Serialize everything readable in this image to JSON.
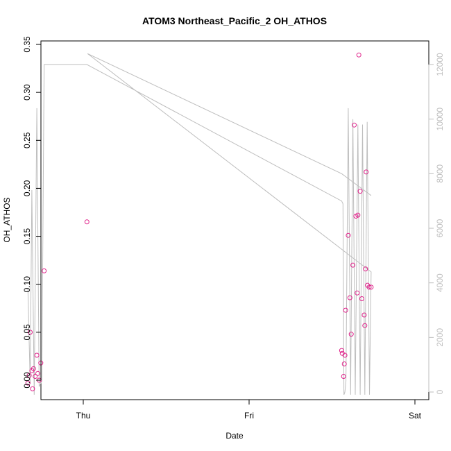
{
  "chart_data": {
    "type": "scatter",
    "title": "ATOM3 Northeast_Pacific_2 OH_ATHOS",
    "xlabel": "Date",
    "ylabel": "OH_ATHOS",
    "y2label": "",
    "x_ticks": [
      "Thu",
      "Fri",
      "Sat"
    ],
    "ylim": [
      -0.015,
      0.35
    ],
    "y_ticks": [
      "0.00",
      "0.05",
      "0.10",
      "0.15",
      "0.20",
      "0.25",
      "0.30",
      "0.35"
    ],
    "y2lim": [
      -200,
      12800
    ],
    "y2_ticks": [
      "0",
      "2000",
      "4000",
      "6000",
      "8000",
      "10000",
      "12000"
    ],
    "xlim": [
      -0.21,
      1.03
    ],
    "grid": false,
    "colors": {
      "points": "#e0218a",
      "line": "#bebebe",
      "axis": "#000000",
      "axis2": "#bebebe"
    },
    "series": [
      {
        "type": "scatter",
        "axis": "left",
        "x": [
          -0.167,
          -0.163,
          -0.16,
          -0.155,
          -0.153,
          -0.15,
          -0.145,
          -0.14,
          -0.137,
          -0.133,
          -0.128,
          -0.118,
          0.011,
          0.779,
          0.781,
          0.785,
          0.787,
          0.789,
          0.791,
          0.799,
          0.804,
          0.808,
          0.813,
          0.817,
          0.822,
          0.826,
          0.828,
          0.831,
          0.835,
          0.84,
          0.847,
          0.849,
          0.851,
          0.853,
          0.857,
          0.862,
          0.868
        ],
        "y": [
          -0.003,
          0.005,
          0.05,
          0.01,
          -0.009,
          0.012,
          0.004,
          0.026,
          0.007,
          0.0,
          0.018,
          0.114,
          0.165,
          0.031,
          0.028,
          0.004,
          0.017,
          0.026,
          0.073,
          0.151,
          0.086,
          0.048,
          0.12,
          0.266,
          0.171,
          0.091,
          0.172,
          0.339,
          0.197,
          0.085,
          0.068,
          0.057,
          0.116,
          0.217,
          0.099,
          0.097,
          0.097
        ]
      },
      {
        "type": "line",
        "axis": "right",
        "x": [
          -0.167,
          -0.16,
          -0.155,
          -0.148,
          -0.14,
          -0.133,
          -0.125,
          -0.118,
          0.0,
          0.011,
          0.779,
          0.783,
          0.786,
          0.789,
          0.792,
          0.799,
          0.806,
          0.813,
          0.82,
          0.828,
          0.835,
          0.842,
          0.849,
          0.856,
          0.863,
          0.868,
          0.013,
          0.779,
          0.868
        ],
        "y": [
          3800,
          300,
          7400,
          -100,
          10400,
          200,
          400,
          12000,
          12000,
          12000,
          7000,
          6900,
          -100,
          0,
          400,
          10400,
          -100,
          10000,
          -100,
          9800,
          -100,
          9800,
          -100,
          9900,
          -100,
          4400,
          12400,
          8000,
          7200
        ]
      }
    ]
  }
}
